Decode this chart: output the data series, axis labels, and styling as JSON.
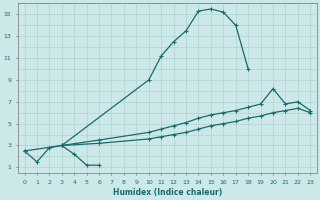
{
  "xlabel": "Humidex (Indice chaleur)",
  "bg_color": "#cce8e8",
  "grid_color": "#aacccc",
  "line_color": "#1a6b6b",
  "xlim": [
    -0.5,
    23.5
  ],
  "ylim": [
    0.5,
    16
  ],
  "line1_x": [
    0,
    1,
    2,
    3,
    4,
    5,
    6
  ],
  "line1_y": [
    2.5,
    1.5,
    2.8,
    3.0,
    2.2,
    1.2,
    1.2
  ],
  "line2_x": [
    0,
    3,
    10,
    11,
    12,
    13,
    14,
    15,
    16,
    17,
    18
  ],
  "line2_y": [
    2.5,
    3.0,
    9.0,
    11.2,
    12.5,
    13.5,
    15.3,
    15.5,
    15.2,
    14.0,
    10.0
  ],
  "line3_x": [
    3,
    6,
    10,
    11,
    12,
    13,
    14,
    15,
    16,
    17,
    18,
    19,
    20,
    21,
    22,
    23
  ],
  "line3_y": [
    3.0,
    3.5,
    4.2,
    4.5,
    4.8,
    5.1,
    5.5,
    5.8,
    6.0,
    6.2,
    6.5,
    6.8,
    8.2,
    6.8,
    7.0,
    6.2
  ],
  "line4_x": [
    3,
    6,
    10,
    11,
    12,
    13,
    14,
    15,
    16,
    17,
    18,
    19,
    20,
    21,
    22,
    23
  ],
  "line4_y": [
    3.0,
    3.2,
    3.6,
    3.8,
    4.0,
    4.2,
    4.5,
    4.8,
    5.0,
    5.2,
    5.5,
    5.7,
    6.0,
    6.2,
    6.4,
    6.0
  ]
}
